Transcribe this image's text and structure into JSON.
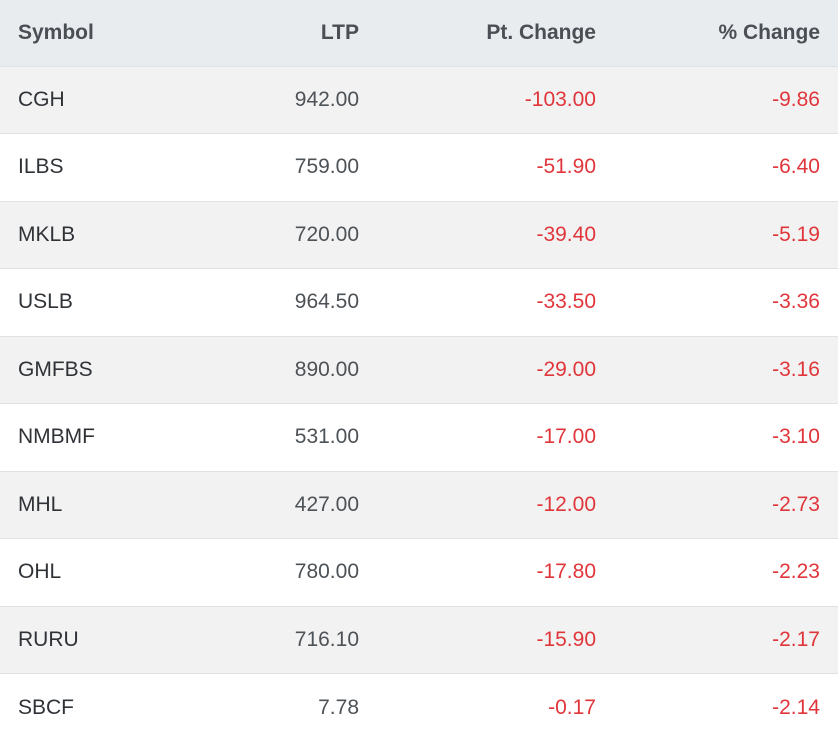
{
  "table": {
    "headers": {
      "symbol": "Symbol",
      "ltp": "LTP",
      "pt_change": "Pt. Change",
      "pct_change": "% Change"
    },
    "rows": [
      {
        "symbol": "CGH",
        "ltp": "942.00",
        "pt_change": "-103.00",
        "pct_change": "-9.86"
      },
      {
        "symbol": "ILBS",
        "ltp": "759.00",
        "pt_change": "-51.90",
        "pct_change": "-6.40"
      },
      {
        "symbol": "MKLB",
        "ltp": "720.00",
        "pt_change": "-39.40",
        "pct_change": "-5.19"
      },
      {
        "symbol": "USLB",
        "ltp": "964.50",
        "pt_change": "-33.50",
        "pct_change": "-3.36"
      },
      {
        "symbol": "GMFBS",
        "ltp": "890.00",
        "pt_change": "-29.00",
        "pct_change": "-3.16"
      },
      {
        "symbol": "NMBMF",
        "ltp": "531.00",
        "pt_change": "-17.00",
        "pct_change": "-3.10"
      },
      {
        "symbol": "MHL",
        "ltp": "427.00",
        "pt_change": "-12.00",
        "pct_change": "-2.73"
      },
      {
        "symbol": "OHL",
        "ltp": "780.00",
        "pt_change": "-17.80",
        "pct_change": "-2.23"
      },
      {
        "symbol": "RURU",
        "ltp": "716.10",
        "pt_change": "-15.90",
        "pct_change": "-2.17"
      },
      {
        "symbol": "SBCF",
        "ltp": "7.78",
        "pt_change": "-0.17",
        "pct_change": "-2.14"
      }
    ]
  },
  "colors": {
    "negative": "#e0363b",
    "header_bg": "#e9ecef",
    "row_stripe": "#f2f2f2"
  }
}
